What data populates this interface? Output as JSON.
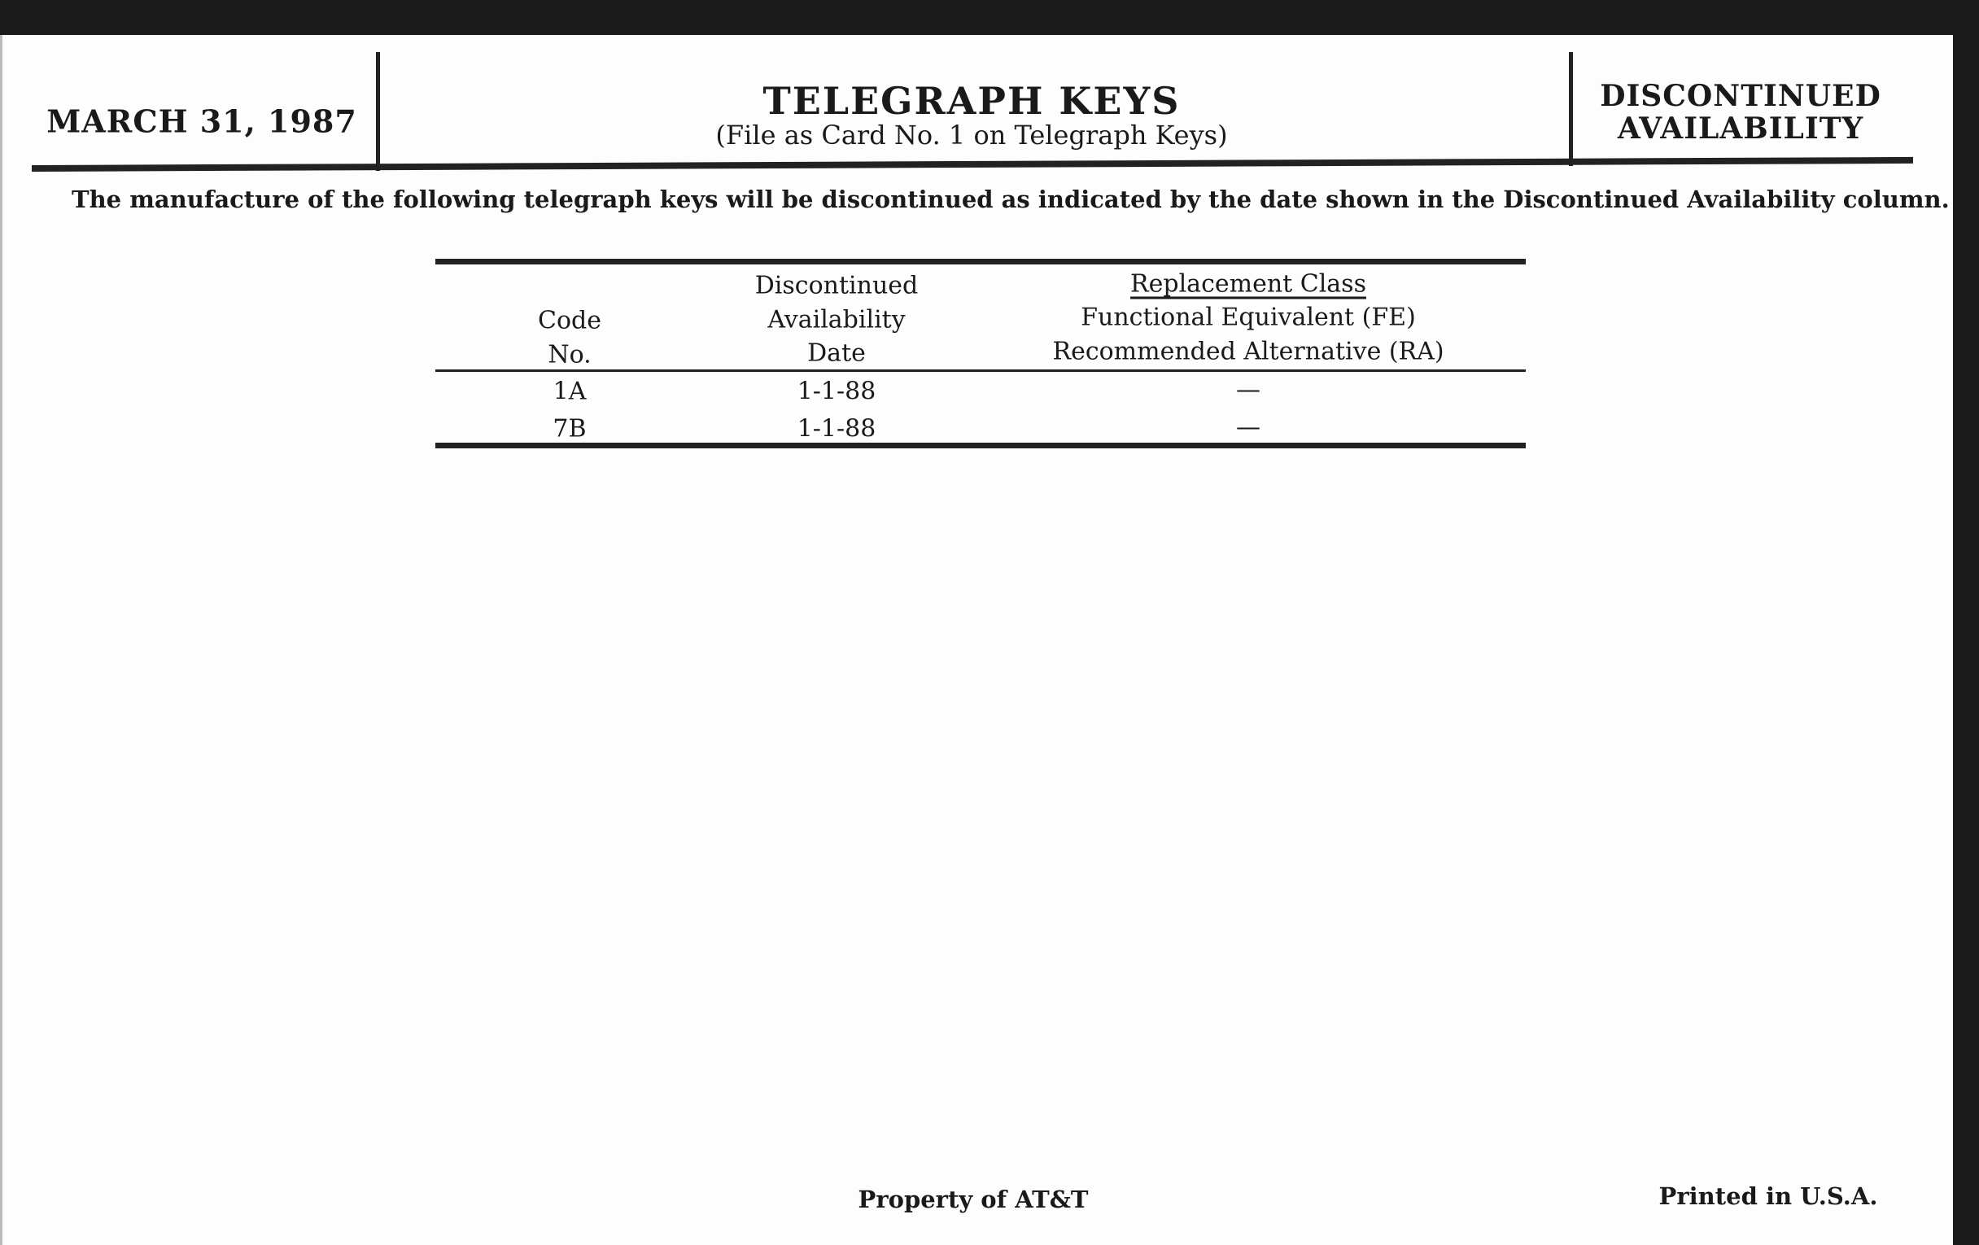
{
  "header": {
    "date": "MARCH 31, 1987",
    "title": "TELEGRAPH KEYS",
    "subtitle": "(File as Card No. 1 on Telegraph Keys)",
    "status_line1": "DISCONTINUED",
    "status_line2": "AVAILABILITY"
  },
  "intro": "The manufacture of the following telegraph keys will be discontinued as indicated by the date shown in the Discontinued Availability column.",
  "table": {
    "headers": {
      "code": [
        "Code",
        "No."
      ],
      "date": [
        "Discontinued",
        "Availability",
        "Date"
      ],
      "replacement": [
        "Replacement Class",
        "Functional Equivalent (FE)",
        "Recommended Alternative (RA)"
      ]
    },
    "rows": [
      {
        "code": "1A",
        "date": "1-1-88",
        "replacement": "—"
      },
      {
        "code": "7B",
        "date": "1-1-88",
        "replacement": "—"
      }
    ]
  },
  "footer": {
    "property": "Property of AT&T",
    "printed": "Printed in U.S.A."
  }
}
